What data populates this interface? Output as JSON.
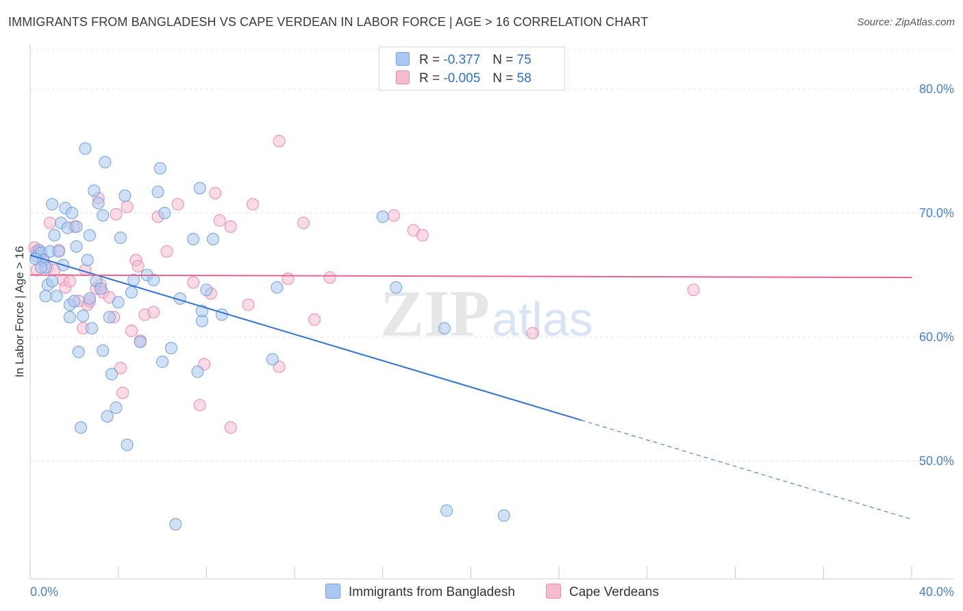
{
  "header": {
    "title": "IMMIGRANTS FROM BANGLADESH VS CAPE VERDEAN IN LABOR FORCE | AGE > 16 CORRELATION CHART",
    "source": "Source: ZipAtlas.com"
  },
  "watermark": {
    "zip": "ZIP",
    "atlas": "atlas"
  },
  "legend": {
    "rows": [
      {
        "r_label": "R =",
        "r_value": "-0.377",
        "n_label": "N =",
        "n_value": "75"
      },
      {
        "r_label": "R =",
        "r_value": "-0.005",
        "n_label": "N =",
        "n_value": "58"
      }
    ]
  },
  "bottom_legend": [
    "Immigrants from Bangladesh",
    "Cape Verdeans"
  ],
  "colors": {
    "blue_fill": "#aac8f0",
    "blue_stroke": "#6f9fdc",
    "blue_line": "#2f72d2",
    "pink_fill": "#f5bcd0",
    "pink_stroke": "#e98aab",
    "pink_line": "#e8628f",
    "grid": "#dde3ea",
    "tick_text": "#4a80c8"
  },
  "chart_data": {
    "type": "scatter",
    "title": "IMMIGRANTS FROM BANGLADESH VS CAPE VERDEAN IN LABOR FORCE | AGE > 16 CORRELATION CHART",
    "xlabel": "",
    "ylabel": "In Labor Force | Age > 16",
    "xlim": [
      0,
      40
    ],
    "ylim": [
      40.5,
      83.2
    ],
    "x_tick_labels": [
      "0.0%",
      "40.0%"
    ],
    "y_ticks": [
      50,
      60,
      70,
      80
    ],
    "y_tick_labels": [
      "50.0%",
      "60.0%",
      "70.0%",
      "80.0%"
    ],
    "grid": true,
    "series": [
      {
        "name": "Immigrants from Bangladesh",
        "color": "#aac8f0",
        "points": [
          [
            0.3,
            66.5
          ],
          [
            0.4,
            67.0
          ],
          [
            0.5,
            66.8
          ],
          [
            0.6,
            66.2
          ],
          [
            0.7,
            65.6
          ],
          [
            0.8,
            64.2
          ],
          [
            0.9,
            66.9
          ],
          [
            0.7,
            63.3
          ],
          [
            1.0,
            70.7
          ],
          [
            1.1,
            68.2
          ],
          [
            1.2,
            63.3
          ],
          [
            1.3,
            66.9
          ],
          [
            1.4,
            69.2
          ],
          [
            1.5,
            65.8
          ],
          [
            1.6,
            70.4
          ],
          [
            1.7,
            68.8
          ],
          [
            1.8,
            62.6
          ],
          [
            1.8,
            61.6
          ],
          [
            1.9,
            70.0
          ],
          [
            2.0,
            62.9
          ],
          [
            2.1,
            67.3
          ],
          [
            2.2,
            58.8
          ],
          [
            2.3,
            52.7
          ],
          [
            2.4,
            61.7
          ],
          [
            2.5,
            75.2
          ],
          [
            2.6,
            66.2
          ],
          [
            2.7,
            68.2
          ],
          [
            2.7,
            63.1
          ],
          [
            2.8,
            60.7
          ],
          [
            2.9,
            71.8
          ],
          [
            3.0,
            64.5
          ],
          [
            3.1,
            70.8
          ],
          [
            3.2,
            63.9
          ],
          [
            3.3,
            58.9
          ],
          [
            3.4,
            74.1
          ],
          [
            3.5,
            53.6
          ],
          [
            3.6,
            61.6
          ],
          [
            3.7,
            57.0
          ],
          [
            3.9,
            54.3
          ],
          [
            4.0,
            62.8
          ],
          [
            4.1,
            68.0
          ],
          [
            4.3,
            71.4
          ],
          [
            4.4,
            51.3
          ],
          [
            4.6,
            63.6
          ],
          [
            4.7,
            64.6
          ],
          [
            5.0,
            59.6
          ],
          [
            5.3,
            65.0
          ],
          [
            5.6,
            64.6
          ],
          [
            5.8,
            71.7
          ],
          [
            5.9,
            73.6
          ],
          [
            6.0,
            58.0
          ],
          [
            6.1,
            70.0
          ],
          [
            6.4,
            59.1
          ],
          [
            6.6,
            44.9
          ],
          [
            6.8,
            63.1
          ],
          [
            7.4,
            67.9
          ],
          [
            7.6,
            57.2
          ],
          [
            7.7,
            72.0
          ],
          [
            7.8,
            61.3
          ],
          [
            7.8,
            62.1
          ],
          [
            8.0,
            63.8
          ],
          [
            8.3,
            67.9
          ],
          [
            8.7,
            61.8
          ],
          [
            11.0,
            58.2
          ],
          [
            11.2,
            64.0
          ],
          [
            16.0,
            69.7
          ],
          [
            16.6,
            64.0
          ],
          [
            18.9,
            46.0
          ],
          [
            18.8,
            60.7
          ],
          [
            21.5,
            45.6
          ],
          [
            0.25,
            66.3
          ],
          [
            0.5,
            65.6
          ],
          [
            1.0,
            64.5
          ],
          [
            2.1,
            68.9
          ],
          [
            3.3,
            69.8
          ]
        ],
        "trend": {
          "x0": 0,
          "y0": 66.6,
          "x1": 25,
          "y1": 53.3,
          "dashed_to_x": 40,
          "dashed_to_y": 45.3
        }
      },
      {
        "name": "Cape Verdeans",
        "color": "#f5bcd0",
        "points": [
          [
            0.2,
            67.2
          ],
          [
            0.3,
            66.9
          ],
          [
            0.3,
            65.4
          ],
          [
            0.4,
            66.8
          ],
          [
            0.6,
            66.3
          ],
          [
            0.8,
            65.6
          ],
          [
            0.9,
            69.2
          ],
          [
            1.1,
            65.4
          ],
          [
            1.3,
            67.0
          ],
          [
            1.5,
            64.6
          ],
          [
            1.6,
            64.0
          ],
          [
            1.8,
            64.5
          ],
          [
            2.0,
            68.9
          ],
          [
            2.2,
            62.9
          ],
          [
            2.4,
            60.7
          ],
          [
            2.5,
            65.4
          ],
          [
            2.6,
            62.6
          ],
          [
            2.7,
            62.9
          ],
          [
            3.0,
            63.9
          ],
          [
            3.1,
            71.2
          ],
          [
            3.2,
            64.2
          ],
          [
            3.3,
            63.6
          ],
          [
            3.6,
            63.2
          ],
          [
            3.8,
            61.6
          ],
          [
            3.9,
            69.9
          ],
          [
            4.1,
            57.5
          ],
          [
            4.2,
            55.5
          ],
          [
            4.4,
            70.5
          ],
          [
            4.6,
            60.5
          ],
          [
            4.8,
            66.2
          ],
          [
            4.9,
            65.7
          ],
          [
            5.0,
            59.7
          ],
          [
            5.2,
            61.8
          ],
          [
            5.6,
            62.0
          ],
          [
            5.8,
            69.7
          ],
          [
            6.2,
            66.9
          ],
          [
            6.7,
            70.7
          ],
          [
            7.4,
            64.4
          ],
          [
            7.7,
            54.5
          ],
          [
            7.9,
            57.8
          ],
          [
            8.2,
            63.5
          ],
          [
            8.4,
            71.6
          ],
          [
            8.6,
            69.4
          ],
          [
            9.1,
            52.7
          ],
          [
            9.1,
            68.9
          ],
          [
            9.9,
            62.6
          ],
          [
            10.1,
            70.7
          ],
          [
            11.3,
            57.6
          ],
          [
            11.3,
            75.8
          ],
          [
            11.7,
            64.7
          ],
          [
            12.4,
            69.2
          ],
          [
            12.9,
            61.4
          ],
          [
            13.6,
            64.8
          ],
          [
            16.5,
            69.8
          ],
          [
            17.4,
            68.6
          ],
          [
            17.8,
            68.2
          ],
          [
            22.8,
            60.3
          ],
          [
            30.1,
            63.8
          ]
        ],
        "trend": {
          "x0": 0,
          "y0": 65.0,
          "x1": 40,
          "y1": 64.8
        }
      }
    ]
  }
}
